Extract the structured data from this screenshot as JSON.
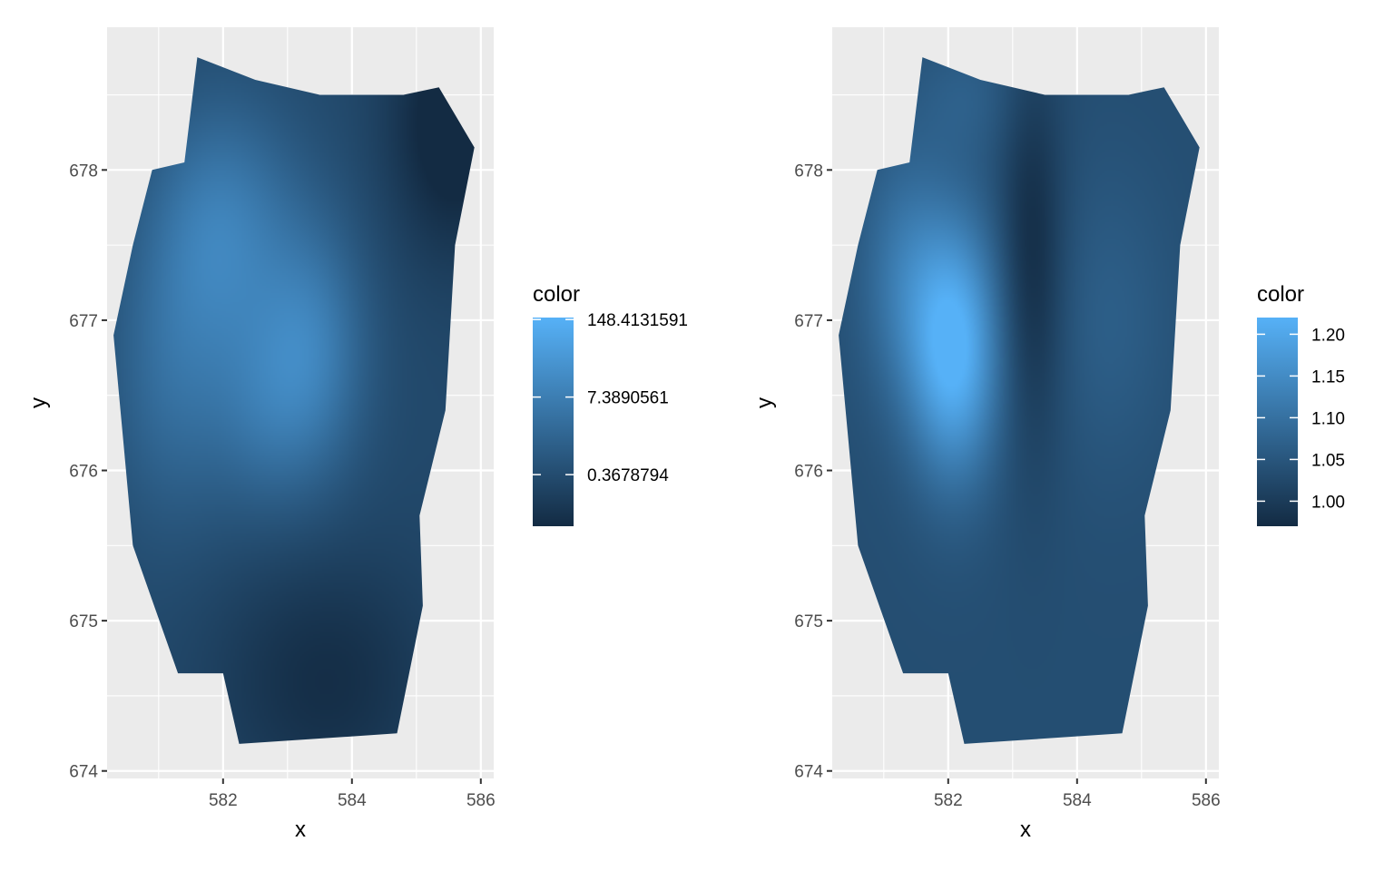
{
  "chart_data": [
    {
      "type": "heatmap",
      "xlabel": "x",
      "ylabel": "y",
      "xlim": [
        580.2,
        586.2
      ],
      "ylim": [
        673.95,
        678.95
      ],
      "x_ticks": [
        582,
        584,
        586
      ],
      "y_ticks": [
        674,
        675,
        676,
        677,
        678
      ],
      "grid": true,
      "legend": {
        "title": "color",
        "placement": "right",
        "scale": "log",
        "range": [
          0.05,
          160
        ],
        "breaks": [
          {
            "value": 148.4131591,
            "label": "148.4131591"
          },
          {
            "value": 7.3890561,
            "label": "7.3890561"
          },
          {
            "value": 0.3678794,
            "label": "0.3678794"
          }
        ]
      },
      "low_color": "#132b43",
      "high_color": "#56b1f7",
      "value_range": [
        0.05,
        160
      ],
      "boundary": [
        [
          581.6,
          678.75
        ],
        [
          582.5,
          678.6
        ],
        [
          583.5,
          678.5
        ],
        [
          584.8,
          678.5
        ],
        [
          585.35,
          678.55
        ],
        [
          585.9,
          678.15
        ],
        [
          585.6,
          677.5
        ],
        [
          585.45,
          676.4
        ],
        [
          585.05,
          675.7
        ],
        [
          585.1,
          675.1
        ],
        [
          584.7,
          674.25
        ],
        [
          582.25,
          674.18
        ],
        [
          582.0,
          674.65
        ],
        [
          581.3,
          674.65
        ],
        [
          580.6,
          675.5
        ],
        [
          580.45,
          676.2
        ],
        [
          580.3,
          676.9
        ],
        [
          580.6,
          677.5
        ],
        [
          580.9,
          678.0
        ],
        [
          581.4,
          678.05
        ]
      ],
      "field_base": 0.3,
      "field_components": [
        {
          "x": 582.0,
          "y": 677.6,
          "sx": 0.8,
          "sy": 0.6,
          "amp": 3.2
        },
        {
          "x": 583.4,
          "y": 676.8,
          "sx": 0.6,
          "sy": 0.6,
          "amp": 3.0
        },
        {
          "x": 581.2,
          "y": 676.6,
          "sx": 0.7,
          "sy": 0.7,
          "amp": 2.0
        },
        {
          "x": 582.6,
          "y": 676.4,
          "sx": 0.6,
          "sy": 0.5,
          "amp": 1.8
        },
        {
          "x": 585.6,
          "y": 678.3,
          "sx": 0.7,
          "sy": 0.6,
          "amp": -2.5
        },
        {
          "x": 583.6,
          "y": 674.6,
          "sx": 1.2,
          "sy": 0.6,
          "amp": -1.6
        }
      ]
    },
    {
      "type": "heatmap",
      "xlabel": "x",
      "ylabel": "y",
      "xlim": [
        580.2,
        586.2
      ],
      "ylim": [
        673.95,
        678.95
      ],
      "x_ticks": [
        582,
        584,
        586
      ],
      "y_ticks": [
        674,
        675,
        676,
        677,
        678
      ],
      "grid": true,
      "legend": {
        "title": "color",
        "placement": "right",
        "scale": "linear",
        "range": [
          0.97,
          1.22
        ],
        "breaks": [
          {
            "value": 1.2,
            "label": "1.20"
          },
          {
            "value": 1.15,
            "label": "1.15"
          },
          {
            "value": 1.1,
            "label": "1.10"
          },
          {
            "value": 1.05,
            "label": "1.05"
          },
          {
            "value": 1.0,
            "label": "1.00"
          }
        ]
      },
      "low_color": "#132b43",
      "high_color": "#56b1f7",
      "value_range": [
        0.97,
        1.22
      ],
      "boundary": [
        [
          581.6,
          678.75
        ],
        [
          582.5,
          678.6
        ],
        [
          583.5,
          678.5
        ],
        [
          584.8,
          678.5
        ],
        [
          585.35,
          678.55
        ],
        [
          585.9,
          678.15
        ],
        [
          585.6,
          677.5
        ],
        [
          585.45,
          676.4
        ],
        [
          585.05,
          675.7
        ],
        [
          585.1,
          675.1
        ],
        [
          584.7,
          674.25
        ],
        [
          582.25,
          674.18
        ],
        [
          582.0,
          674.65
        ],
        [
          581.3,
          674.65
        ],
        [
          580.6,
          675.5
        ],
        [
          580.45,
          676.2
        ],
        [
          580.3,
          676.9
        ],
        [
          580.6,
          677.5
        ],
        [
          580.9,
          678.0
        ],
        [
          581.4,
          678.05
        ]
      ],
      "field_base": 1.035,
      "field_components": [
        {
          "x": 582.1,
          "y": 676.8,
          "sx": 0.5,
          "sy": 0.6,
          "amp": 0.19
        },
        {
          "x": 581.3,
          "y": 677.3,
          "sx": 0.5,
          "sy": 0.6,
          "amp": 0.07
        },
        {
          "x": 583.3,
          "y": 677.4,
          "sx": 0.35,
          "sy": 0.9,
          "amp": -0.065
        },
        {
          "x": 584.5,
          "y": 677.0,
          "sx": 0.7,
          "sy": 0.7,
          "amp": 0.03
        },
        {
          "x": 582.3,
          "y": 678.5,
          "sx": 0.6,
          "sy": 0.3,
          "amp": 0.03
        }
      ]
    }
  ]
}
